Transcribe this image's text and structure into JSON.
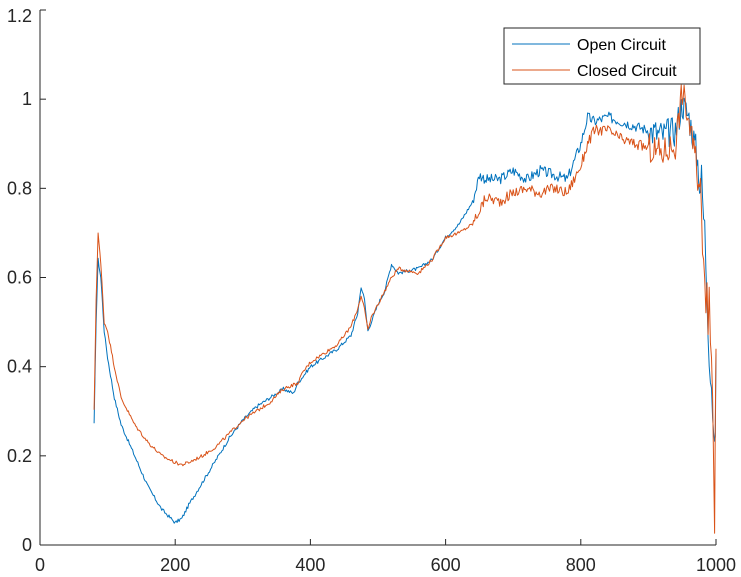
{
  "chart_data": {
    "type": "line",
    "title": "",
    "xlabel": "",
    "ylabel": "",
    "xlim": [
      0,
      1000
    ],
    "ylim": [
      0,
      1.2
    ],
    "xticks": [
      0,
      200,
      400,
      600,
      800,
      1000
    ],
    "xtick_labels": [
      "0",
      "200",
      "400",
      "600",
      "800",
      "1000"
    ],
    "yticks": [
      0,
      0.2,
      0.4,
      0.6,
      0.8,
      1,
      1.2
    ],
    "ytick_labels": [
      "0",
      "0.2",
      "0.4",
      "0.6",
      "0.8",
      "1",
      "1.2"
    ],
    "grid": false,
    "legend_position": "top-right",
    "series": [
      {
        "name": "Open Circuit",
        "color": "#0072BD",
        "x": [
          80,
          83,
          86,
          90,
          95,
          100,
          110,
          120,
          140,
          160,
          180,
          200,
          210,
          220,
          240,
          260,
          280,
          300,
          320,
          340,
          360,
          375,
          380,
          390,
          400,
          420,
          440,
          460,
          470,
          475,
          480,
          485,
          490,
          500,
          510,
          520,
          530,
          560,
          580,
          600,
          620,
          640,
          650,
          660,
          680,
          700,
          720,
          740,
          760,
          780,
          800,
          810,
          820,
          840,
          860,
          880,
          900,
          920,
          940,
          950,
          960,
          970,
          980,
          985,
          990,
          995,
          998,
          1000
        ],
        "y": [
          0.27,
          0.5,
          0.64,
          0.6,
          0.48,
          0.42,
          0.33,
          0.27,
          0.2,
          0.13,
          0.08,
          0.05,
          0.06,
          0.09,
          0.14,
          0.19,
          0.24,
          0.28,
          0.31,
          0.33,
          0.35,
          0.34,
          0.36,
          0.38,
          0.4,
          0.42,
          0.44,
          0.47,
          0.52,
          0.58,
          0.55,
          0.48,
          0.5,
          0.54,
          0.57,
          0.63,
          0.61,
          0.62,
          0.64,
          0.69,
          0.72,
          0.77,
          0.83,
          0.82,
          0.82,
          0.84,
          0.82,
          0.84,
          0.83,
          0.82,
          0.9,
          0.96,
          0.95,
          0.96,
          0.95,
          0.94,
          0.93,
          0.92,
          0.93,
          0.99,
          0.96,
          0.89,
          0.78,
          0.65,
          0.47,
          0.33,
          0.16,
          0.43
        ]
      },
      {
        "name": "Closed Circuit",
        "color": "#D95319",
        "x": [
          80,
          83,
          86,
          90,
          95,
          100,
          110,
          120,
          140,
          160,
          180,
          200,
          210,
          220,
          240,
          260,
          280,
          300,
          320,
          340,
          360,
          375,
          380,
          390,
          400,
          420,
          440,
          460,
          470,
          475,
          480,
          485,
          490,
          500,
          510,
          520,
          530,
          560,
          580,
          600,
          620,
          640,
          650,
          660,
          680,
          700,
          720,
          740,
          760,
          780,
          800,
          810,
          820,
          840,
          860,
          880,
          900,
          920,
          940,
          950,
          960,
          970,
          980,
          985,
          990,
          995,
          998,
          1000
        ],
        "y": [
          0.3,
          0.55,
          0.7,
          0.63,
          0.5,
          0.48,
          0.4,
          0.33,
          0.27,
          0.23,
          0.2,
          0.185,
          0.18,
          0.185,
          0.2,
          0.22,
          0.25,
          0.28,
          0.3,
          0.32,
          0.35,
          0.36,
          0.36,
          0.39,
          0.41,
          0.43,
          0.45,
          0.49,
          0.53,
          0.56,
          0.53,
          0.48,
          0.51,
          0.54,
          0.57,
          0.6,
          0.62,
          0.61,
          0.64,
          0.69,
          0.7,
          0.72,
          0.75,
          0.78,
          0.77,
          0.79,
          0.8,
          0.79,
          0.8,
          0.79,
          0.85,
          0.9,
          0.93,
          0.93,
          0.91,
          0.9,
          0.89,
          0.88,
          0.9,
          1.02,
          0.95,
          0.86,
          0.73,
          0.6,
          0.5,
          0.35,
          0.08,
          0.44
        ]
      }
    ]
  }
}
